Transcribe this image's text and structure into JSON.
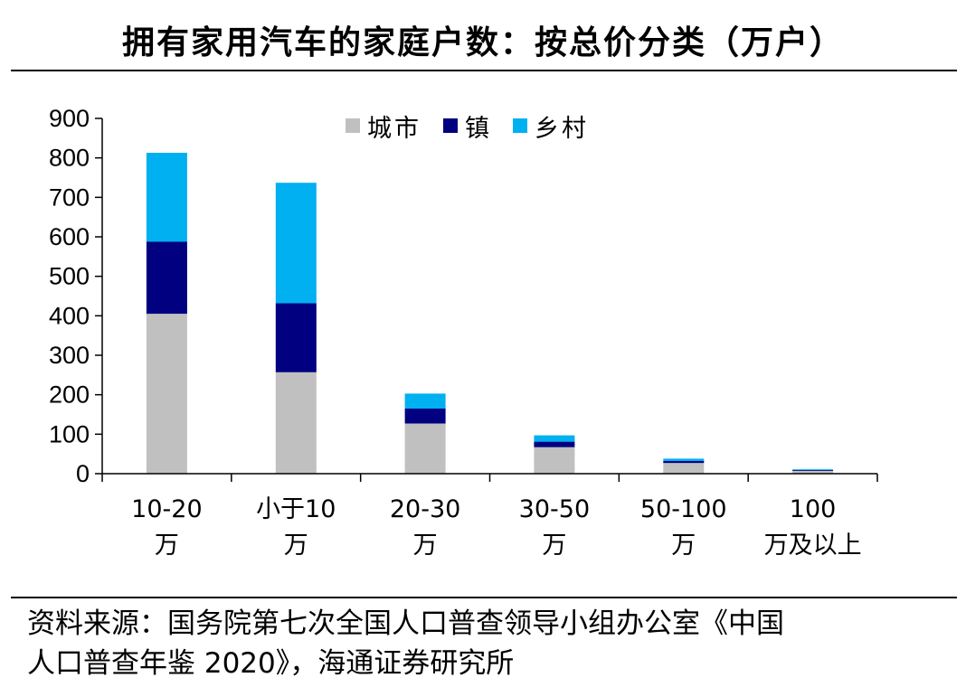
{
  "title": "拥有家用汽车的家庭户数：按总价分类（万户）",
  "source": {
    "line1": "资料来源：国务院第七次全国人口普查领导小组办公室《中国",
    "line2": "人口普查年鉴 2020》，海通证券研究所"
  },
  "colors": {
    "城市": "#c0c0c0",
    "镇": "#000080",
    "乡村": "#00b0f0"
  },
  "chart_data": {
    "type": "bar",
    "stacked": true,
    "title": "拥有家用汽车的家庭户数：按总价分类（万户）",
    "unit": "万户",
    "categories": [
      [
        "10-20",
        "万"
      ],
      [
        "小于10",
        "万"
      ],
      [
        "20-30",
        "万"
      ],
      [
        "30-50",
        "万"
      ],
      [
        "50-100",
        "万"
      ],
      [
        "100",
        "万及以上"
      ]
    ],
    "series": [
      {
        "name": "城市",
        "color": "#c0c0c0",
        "values": [
          405,
          257,
          127,
          67,
          27,
          7
        ]
      },
      {
        "name": "镇",
        "color": "#000080",
        "values": [
          183,
          175,
          38,
          14,
          5,
          2
        ]
      },
      {
        "name": "乡村",
        "color": "#00b0f0",
        "values": [
          225,
          305,
          38,
          16,
          6,
          2
        ]
      }
    ],
    "ylim": [
      0,
      900
    ],
    "yticks": [
      0,
      100,
      200,
      300,
      400,
      500,
      600,
      700,
      800,
      900
    ],
    "legend_position": "top-center",
    "grid": false
  }
}
